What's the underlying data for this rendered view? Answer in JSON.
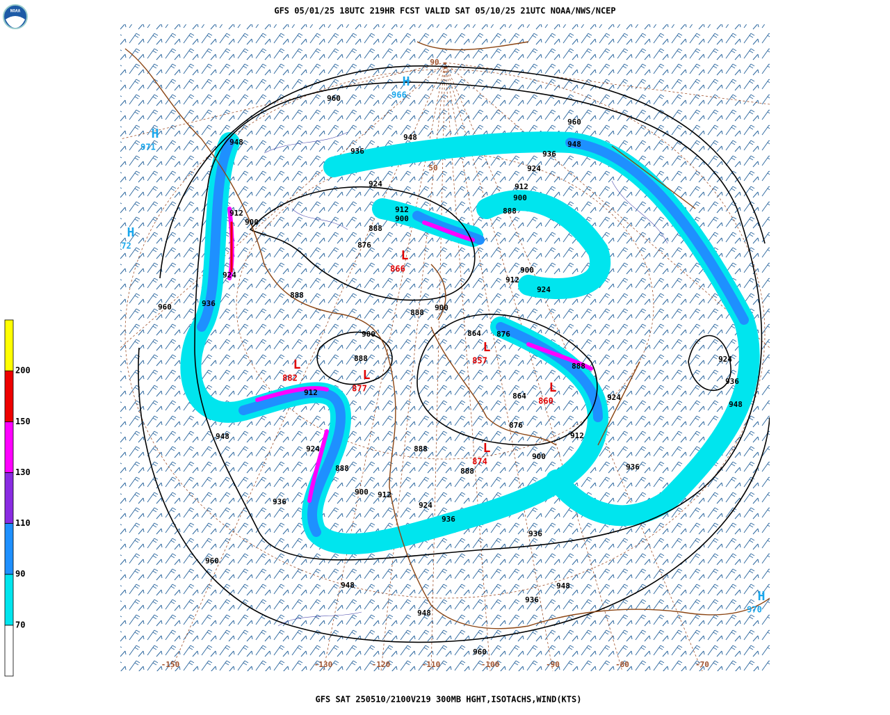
{
  "header": {
    "title": "GFS 05/01/25 18UTC 219HR FCST VALID SAT 05/10/25 21UTC NOAA/NWS/NCEP",
    "logo": "NOAA"
  },
  "footer": "GFS SAT 250510/2100V219 300MB HGHT,ISOTACHS,WIND(KTS)",
  "colorbar": {
    "levels": [
      70,
      90,
      110,
      130,
      150,
      200
    ],
    "colors": [
      "#ffffff",
      "#00e5ee",
      "#1e90ff",
      "#8a2be2",
      "#ff00ff",
      "#ee0000",
      "#ffff00"
    ]
  },
  "map": {
    "contour_labels": [
      960,
      948,
      936,
      924,
      912,
      900,
      888,
      876,
      960,
      948,
      936,
      924,
      912,
      900,
      888,
      948,
      912,
      900,
      924,
      936,
      960,
      888,
      900,
      888,
      912,
      924,
      888,
      900,
      912,
      924,
      936,
      936,
      948,
      960,
      948,
      948,
      960,
      936,
      948,
      936,
      936,
      948,
      936,
      924,
      924,
      888,
      876,
      864,
      864,
      876,
      888,
      888,
      900,
      912,
      900,
      912,
      924,
      900,
      888
    ],
    "highs": [
      {
        "label": "H",
        "value": 966
      },
      {
        "label": "H",
        "value": 971
      },
      {
        "label": "H",
        "value": 972
      },
      {
        "label": "H",
        "value": 970
      }
    ],
    "lows": [
      {
        "label": "L",
        "value": 866
      },
      {
        "label": "L",
        "value": 857
      },
      {
        "label": "L",
        "value": 860
      },
      {
        "label": "L",
        "value": 874
      },
      {
        "label": "L",
        "value": 877
      },
      {
        "label": "L",
        "value": 882
      }
    ],
    "longitudes": [
      -150,
      -130,
      -120,
      -110,
      -100,
      -90,
      -80,
      -70
    ],
    "latitudes": [
      90,
      50
    ]
  }
}
